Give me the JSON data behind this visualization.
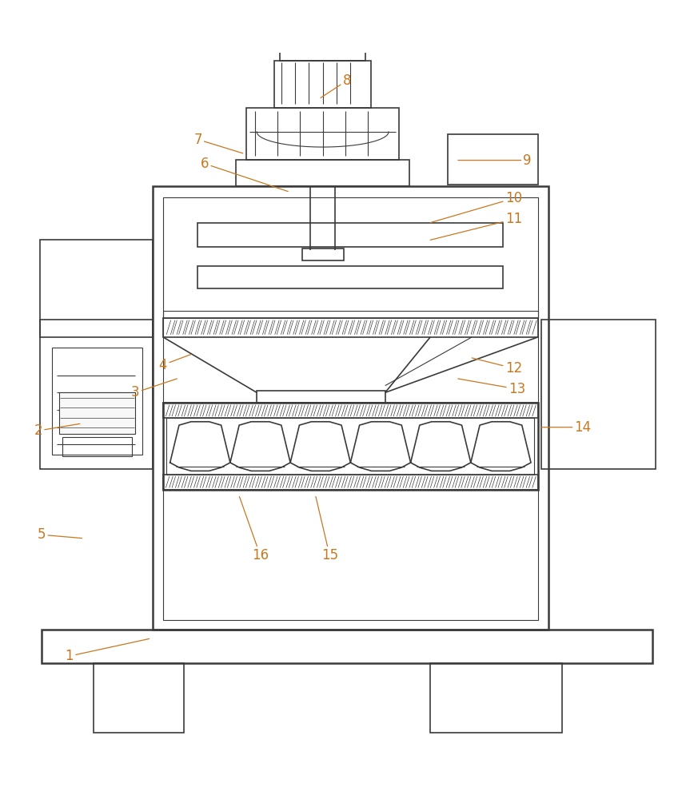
{
  "bg_color": "#ffffff",
  "line_color": "#3a3a3a",
  "lw_main": 1.8,
  "lw_inner": 1.2,
  "lw_thin": 0.8,
  "label_color": "#c87820",
  "label_font_size": 12,
  "labels_data": [
    [
      1,
      0.1,
      0.13,
      0.215,
      0.155
    ],
    [
      2,
      0.055,
      0.455,
      0.115,
      0.465
    ],
    [
      3,
      0.195,
      0.51,
      0.255,
      0.53
    ],
    [
      4,
      0.235,
      0.55,
      0.275,
      0.565
    ],
    [
      5,
      0.06,
      0.305,
      0.118,
      0.3
    ],
    [
      6,
      0.295,
      0.84,
      0.415,
      0.8
    ],
    [
      7,
      0.285,
      0.875,
      0.35,
      0.855
    ],
    [
      8,
      0.5,
      0.96,
      0.462,
      0.935
    ],
    [
      9,
      0.76,
      0.845,
      0.66,
      0.845
    ],
    [
      10,
      0.74,
      0.79,
      0.62,
      0.755
    ],
    [
      11,
      0.74,
      0.76,
      0.62,
      0.73
    ],
    [
      12,
      0.74,
      0.545,
      0.68,
      0.56
    ],
    [
      13,
      0.745,
      0.515,
      0.66,
      0.53
    ],
    [
      14,
      0.84,
      0.46,
      0.78,
      0.46
    ],
    [
      15,
      0.475,
      0.275,
      0.455,
      0.36
    ],
    [
      16,
      0.375,
      0.275,
      0.345,
      0.36
    ]
  ]
}
